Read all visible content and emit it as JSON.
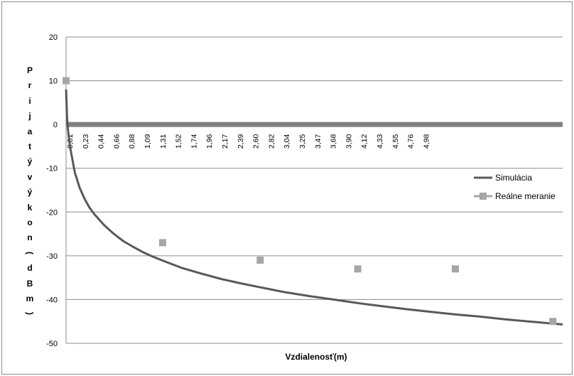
{
  "chart_data": {
    "type": "line",
    "title": "",
    "xlabel": "Vzdialenosť(m)",
    "ylabel": "Prijatý výkon (dBm)",
    "ylim": [
      -50,
      20
    ],
    "yticks": [
      20,
      10,
      0,
      -10,
      -20,
      -30,
      -40,
      -50
    ],
    "x_categories": [
      "0,01",
      "0,23",
      "0,44",
      "0,66",
      "0,88",
      "1,09",
      "1,31",
      "1,52",
      "1,74",
      "1,96",
      "2,17",
      "2,39",
      "2,60",
      "2,82",
      "3,04",
      "3,25",
      "3,47",
      "3,68",
      "3,90",
      "4,12",
      "4,33",
      "4,55",
      "4,76",
      "4,98"
    ],
    "xlim": [
      0.01,
      5.1
    ],
    "grid": "horizontal",
    "legend_position": "right",
    "series": [
      {
        "name": "Simulácia",
        "kind": "line",
        "color": "#595959",
        "x": [
          0.01,
          0.02,
          0.03,
          0.05,
          0.08,
          0.1,
          0.15,
          0.2,
          0.25,
          0.3,
          0.4,
          0.5,
          0.6,
          0.7,
          0.8,
          0.9,
          1.0,
          1.2,
          1.4,
          1.6,
          1.8,
          2.0,
          2.25,
          2.5,
          2.75,
          3.0,
          3.25,
          3.5,
          3.75,
          4.0,
          4.25,
          4.5,
          4.75,
          5.0,
          5.1
        ],
        "y": [
          8.0,
          1.6,
          -1.3,
          -5.0,
          -8.6,
          -11.0,
          -14.5,
          -17.0,
          -19.0,
          -20.5,
          -23.0,
          -25.0,
          -26.7,
          -28.0,
          -29.2,
          -30.2,
          -31.1,
          -32.8,
          -34.1,
          -35.3,
          -36.3,
          -37.2,
          -38.3,
          -39.2,
          -40.0,
          -40.8,
          -41.5,
          -42.2,
          -42.8,
          -43.4,
          -43.9,
          -44.5,
          -45.0,
          -45.5,
          -45.7
        ]
      },
      {
        "name": "Reálne meranie",
        "kind": "scatter",
        "color": "#a6a6a6",
        "x": [
          0.01,
          1.0,
          2.0,
          3.0,
          4.0,
          5.0
        ],
        "y": [
          10,
          -27,
          -31,
          -33,
          -33,
          -45
        ]
      }
    ],
    "zero_line_color": "#808080"
  }
}
